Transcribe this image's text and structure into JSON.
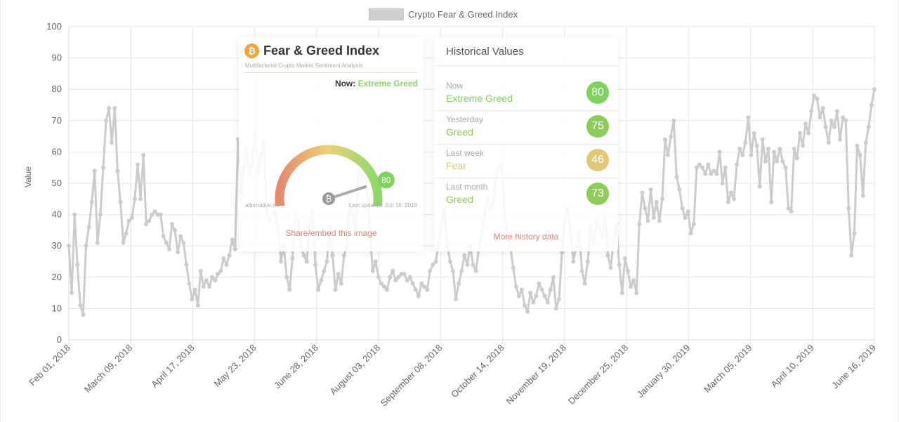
{
  "legend": {
    "label": "Crypto Fear & Greed Index"
  },
  "chart_data": {
    "type": "line",
    "title": "",
    "ylabel": "Value",
    "ylim": [
      0,
      100
    ],
    "yticks": [
      0,
      10,
      20,
      30,
      40,
      50,
      60,
      70,
      80,
      90,
      100
    ],
    "xticks": [
      "Feb 01, 2018",
      "March 09, 2018",
      "April 17, 2018",
      "May 23, 2018",
      "June 28, 2018",
      "August 03, 2018",
      "September 08, 2018",
      "October 14, 2018",
      "November 19, 2018",
      "December 25, 2018",
      "January 30, 2019",
      "March 05, 2019",
      "April 10, 2019",
      "June 16, 2019"
    ],
    "grid": true,
    "legend_position": "top-center",
    "line_color": "#cccccc",
    "series": [
      {
        "name": "Crypto Fear & Greed Index",
        "values": [
          30,
          15,
          40,
          24,
          11,
          8,
          30,
          36,
          44,
          54,
          31,
          40,
          55,
          70,
          74,
          63,
          74,
          54,
          44,
          31,
          34,
          38,
          39,
          45,
          56,
          45,
          59,
          37,
          38,
          40,
          41,
          40,
          40,
          33,
          31,
          29,
          37,
          35,
          28,
          33,
          31,
          24,
          18,
          13,
          16,
          11,
          22,
          17,
          19,
          17,
          20,
          19,
          21,
          22,
          26,
          24,
          27,
          32,
          29,
          64,
          47,
          55,
          61,
          53,
          57,
          66,
          54,
          59,
          63,
          41,
          38,
          40,
          41,
          35,
          25,
          30,
          20,
          16,
          26,
          40,
          38,
          30,
          27,
          25,
          37,
          41,
          24,
          16,
          19,
          22,
          25,
          36,
          27,
          16,
          21,
          18,
          27,
          30,
          44,
          40,
          36,
          54,
          52,
          55,
          48,
          35,
          22,
          25,
          20,
          18,
          17,
          16,
          20,
          22,
          19,
          20,
          21,
          21,
          19,
          20,
          18,
          16,
          14,
          18,
          17,
          16,
          22,
          24,
          25,
          31,
          36,
          42,
          30,
          25,
          22,
          13,
          18,
          22,
          27,
          24,
          30,
          24,
          22,
          29,
          34,
          40,
          45,
          42,
          43,
          52,
          55,
          56,
          40,
          34,
          30,
          23,
          17,
          14,
          16,
          11,
          9,
          15,
          12,
          14,
          18,
          16,
          14,
          12,
          16,
          20,
          10,
          13,
          28,
          38,
          42,
          35,
          25,
          30,
          34,
          22,
          18,
          25,
          36,
          30,
          38,
          36,
          33,
          40,
          27,
          23,
          31,
          37,
          24,
          15,
          26,
          22,
          17,
          19,
          15,
          37,
          47,
          42,
          38,
          48,
          39,
          44,
          38,
          45,
          64,
          59,
          65,
          70,
          52,
          48,
          42,
          39,
          41,
          34,
          37,
          55,
          56,
          55,
          53,
          56,
          53,
          54,
          53,
          60,
          50,
          55,
          44,
          47,
          45,
          56,
          61,
          59,
          63,
          71,
          59,
          66,
          62,
          49,
          64,
          57,
          61,
          44,
          60,
          57,
          61,
          57,
          55,
          42,
          41,
          61,
          58,
          66,
          62,
          69,
          66,
          73,
          78,
          77,
          71,
          74,
          68,
          63,
          70,
          68,
          73,
          64,
          71,
          70,
          42,
          27,
          34,
          62,
          59,
          46,
          63,
          68,
          75,
          80
        ]
      }
    ]
  },
  "fg_card": {
    "title": "Fear & Greed Index",
    "subtitle": "Multifactorial Crypto Market Sentiment Analysis",
    "now_label": "Now:",
    "now_value": "Extreme Greed",
    "gauge_value": 80,
    "gauge_value_text": "80",
    "btc_symbol": "₿",
    "footer_left": "alternative.me",
    "footer_right": "Last updated: Jun 16, 2019",
    "share_link": "Share/embed this image"
  },
  "historical": {
    "title": "Historical Values",
    "rows": [
      {
        "period": "Now",
        "classification": "Extreme Greed",
        "value": "80",
        "color": "#7fd160",
        "text_color": "#7fd160"
      },
      {
        "period": "Yesterday",
        "classification": "Greed",
        "value": "75",
        "color": "#8ecb5c",
        "text_color": "#8ecb5c"
      },
      {
        "period": "Last week",
        "classification": "Fear",
        "value": "46",
        "color": "#e0c878",
        "text_color": "#e0c878"
      },
      {
        "period": "Last month",
        "classification": "Greed",
        "value": "73",
        "color": "#8ecb5c",
        "text_color": "#8ecb5c"
      }
    ],
    "more_link": "More history data"
  }
}
